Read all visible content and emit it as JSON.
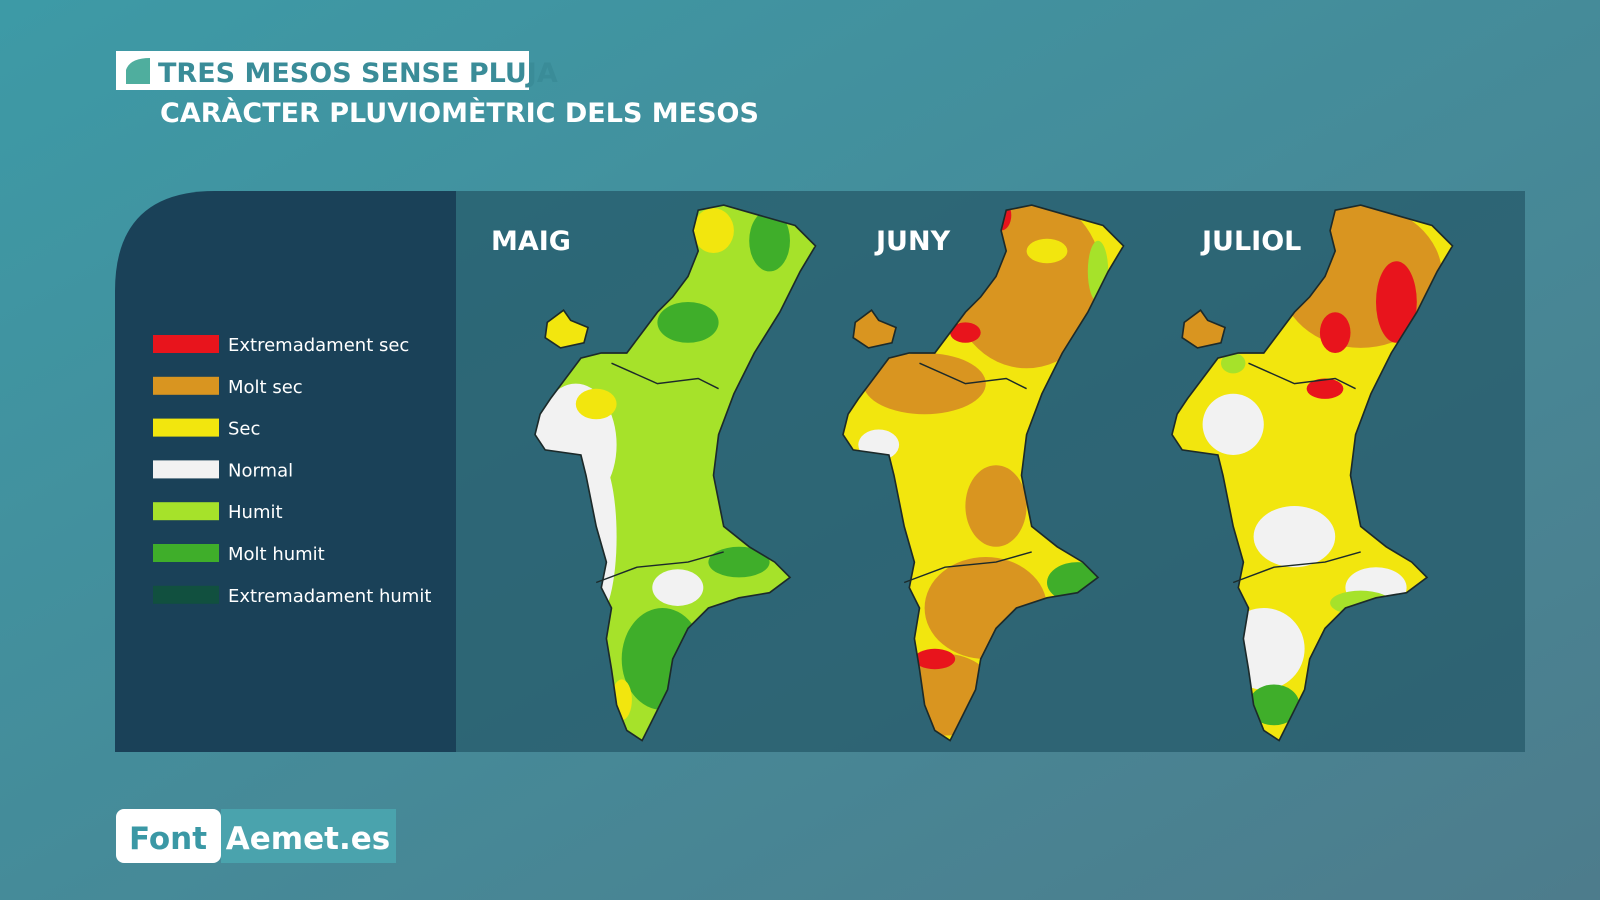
{
  "header": {
    "title": "TRES MESOS SENSE PLUJA",
    "subtitle": "CARÀCTER PLUVIOMÈTRIC DELS MESOS"
  },
  "legend": {
    "items": [
      {
        "label": "Extremadament sec",
        "color": "#e8141c"
      },
      {
        "label": "Molt sec",
        "color": "#d99520"
      },
      {
        "label": "Sec",
        "color": "#f2e60e"
      },
      {
        "label": "Normal",
        "color": "#f2f2f2"
      },
      {
        "label": "Humit",
        "color": "#a6e22a"
      },
      {
        "label": "Molt humit",
        "color": "#3fae2a"
      },
      {
        "label": "Extremadament humit",
        "color": "#11503f"
      }
    ]
  },
  "maps": [
    {
      "title": "MAIG"
    },
    {
      "title": "JUNY"
    },
    {
      "title": "JULIOL"
    }
  ],
  "source": {
    "label": "Font",
    "value": "Aemet.es"
  }
}
